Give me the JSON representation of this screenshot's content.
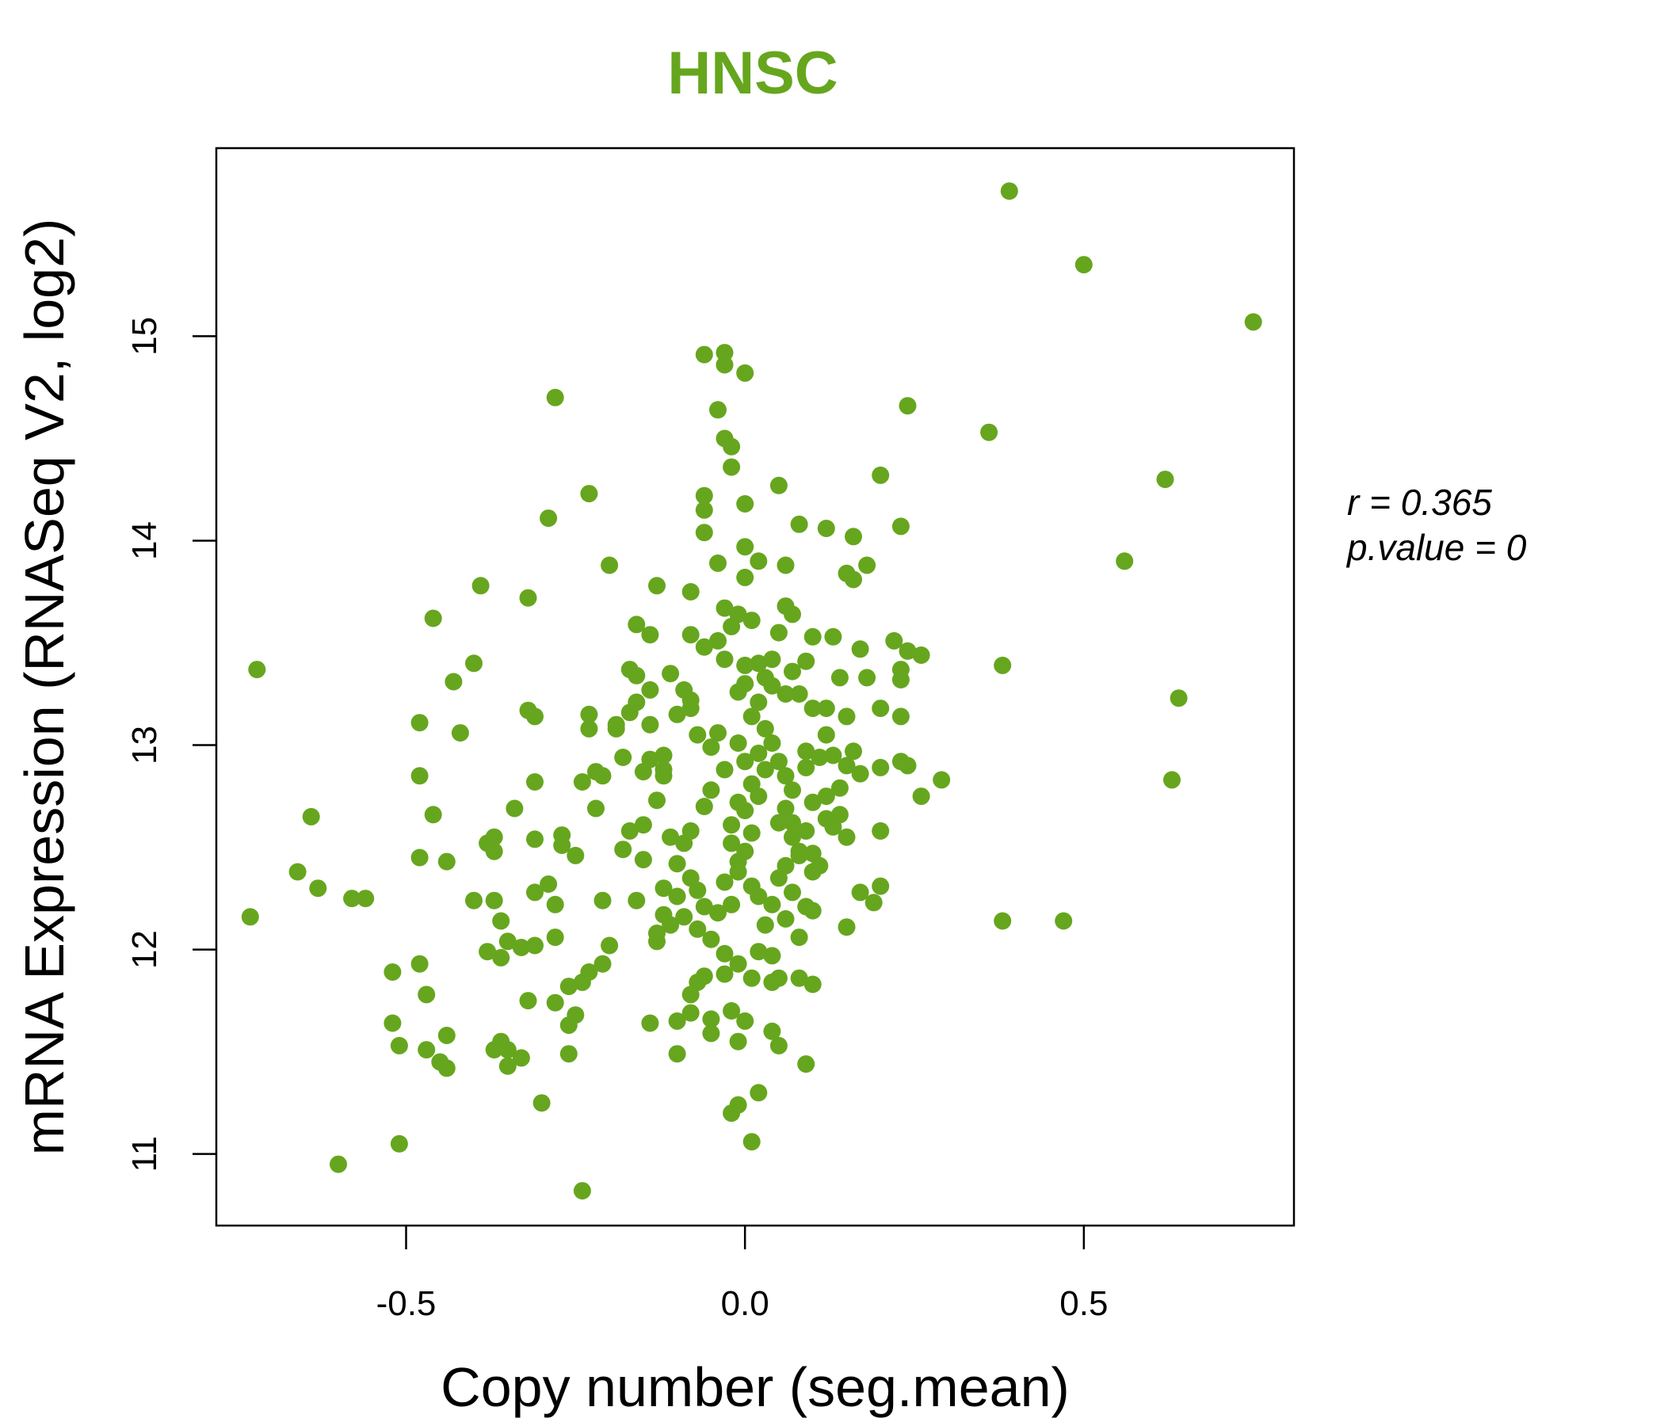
{
  "chart_data": {
    "type": "scatter",
    "title": "HNSC",
    "xlabel": "Copy number (seg.mean)",
    "ylabel": "mRNA Expression (RNASeq V2, log2)",
    "xlim": [
      -0.78,
      0.81
    ],
    "ylim": [
      10.65,
      15.92
    ],
    "xticks": [
      {
        "value": -0.5,
        "label": "-0.5"
      },
      {
        "value": 0.0,
        "label": "0.0"
      },
      {
        "value": 0.5,
        "label": "0.5"
      }
    ],
    "yticks": [
      {
        "value": 11,
        "label": "11"
      },
      {
        "value": 12,
        "label": "12"
      },
      {
        "value": 13,
        "label": "13"
      },
      {
        "value": 14,
        "label": "14"
      },
      {
        "value": 15,
        "label": "15"
      }
    ],
    "grid": false,
    "color": "#66a61e",
    "annotations": {
      "r_label": "r = 0.365",
      "p_label": "p.value = 0"
    },
    "points": [
      [
        0.39,
        15.71
      ],
      [
        0.5,
        15.35
      ],
      [
        0.75,
        15.07
      ],
      [
        -0.72,
        13.37
      ],
      [
        -0.73,
        12.16
      ],
      [
        0.62,
        14.3
      ],
      [
        0.36,
        14.53
      ],
      [
        0.56,
        13.9
      ],
      [
        0.64,
        13.23
      ],
      [
        0.63,
        12.83
      ],
      [
        0.38,
        13.39
      ],
      [
        0.38,
        12.14
      ],
      [
        0.47,
        12.14
      ],
      [
        0.24,
        14.66
      ],
      [
        0.2,
        14.32
      ],
      [
        0.23,
        14.07
      ],
      [
        0.29,
        12.83
      ],
      [
        -0.28,
        14.7
      ],
      [
        -0.23,
        14.23
      ],
      [
        -0.29,
        14.11
      ],
      [
        -0.2,
        13.88
      ],
      [
        -0.39,
        13.78
      ],
      [
        -0.32,
        13.72
      ],
      [
        -0.46,
        13.62
      ],
      [
        -0.4,
        13.4
      ],
      [
        -0.43,
        13.31
      ],
      [
        -0.48,
        13.11
      ],
      [
        -0.42,
        13.06
      ],
      [
        -0.64,
        12.65
      ],
      [
        -0.66,
        12.38
      ],
      [
        -0.63,
        12.3
      ],
      [
        -0.58,
        12.25
      ],
      [
        -0.56,
        12.25
      ],
      [
        -0.48,
        12.85
      ],
      [
        -0.46,
        12.66
      ],
      [
        -0.48,
        12.45
      ],
      [
        -0.44,
        12.43
      ],
      [
        -0.52,
        11.89
      ],
      [
        -0.48,
        11.93
      ],
      [
        -0.47,
        11.78
      ],
      [
        -0.52,
        11.64
      ],
      [
        -0.51,
        11.53
      ],
      [
        -0.47,
        11.51
      ],
      [
        -0.44,
        11.58
      ],
      [
        -0.44,
        11.42
      ],
      [
        -0.45,
        11.45
      ],
      [
        -0.51,
        11.05
      ],
      [
        -0.6,
        10.95
      ],
      [
        -0.24,
        10.82
      ],
      [
        -0.3,
        11.25
      ],
      [
        -0.06,
        14.91
      ],
      [
        -0.03,
        14.92
      ],
      [
        -0.03,
        14.86
      ],
      [
        0.0,
        14.82
      ],
      [
        -0.04,
        14.64
      ],
      [
        -0.03,
        14.5
      ],
      [
        -0.02,
        14.46
      ],
      [
        -0.02,
        14.36
      ],
      [
        0.05,
        14.27
      ],
      [
        -0.06,
        14.22
      ],
      [
        0.0,
        14.18
      ],
      [
        -0.06,
        14.15
      ],
      [
        0.08,
        14.08
      ],
      [
        -0.06,
        14.04
      ],
      [
        0.12,
        14.06
      ],
      [
        0.16,
        14.02
      ],
      [
        -0.04,
        13.89
      ],
      [
        0.0,
        13.97
      ],
      [
        0.02,
        13.9
      ],
      [
        0.06,
        13.88
      ],
      [
        0.18,
        13.88
      ],
      [
        0.15,
        13.84
      ],
      [
        0.16,
        13.81
      ],
      [
        -0.13,
        13.78
      ],
      [
        -0.08,
        13.75
      ],
      [
        0.0,
        13.82
      ],
      [
        -0.03,
        13.67
      ],
      [
        0.06,
        13.68
      ],
      [
        -0.16,
        13.59
      ],
      [
        -0.14,
        13.54
      ],
      [
        -0.08,
        13.54
      ],
      [
        -0.06,
        13.48
      ],
      [
        0.1,
        13.53
      ],
      [
        0.13,
        13.53
      ],
      [
        0.22,
        13.51
      ],
      [
        0.24,
        13.46
      ],
      [
        0.26,
        13.44
      ],
      [
        0.17,
        13.47
      ],
      [
        -0.17,
        13.37
      ],
      [
        -0.11,
        13.35
      ],
      [
        0.18,
        13.33
      ],
      [
        0.23,
        13.37
      ],
      [
        0.23,
        13.32
      ],
      [
        -0.32,
        13.17
      ],
      [
        -0.31,
        13.14
      ],
      [
        -0.23,
        13.15
      ],
      [
        -0.23,
        13.08
      ],
      [
        -0.19,
        13.08
      ],
      [
        -0.14,
        13.1
      ],
      [
        0.2,
        13.18
      ],
      [
        0.23,
        13.14
      ],
      [
        0.2,
        12.89
      ],
      [
        0.23,
        12.92
      ],
      [
        0.24,
        12.9
      ],
      [
        0.26,
        12.75
      ],
      [
        0.2,
        12.58
      ],
      [
        0.2,
        12.31
      ],
      [
        0.19,
        12.23
      ],
      [
        0.17,
        12.28
      ],
      [
        0.15,
        12.11
      ],
      [
        -0.31,
        12.82
      ],
      [
        -0.24,
        12.82
      ],
      [
        -0.22,
        12.87
      ],
      [
        -0.21,
        12.85
      ],
      [
        -0.34,
        12.69
      ],
      [
        -0.38,
        12.52
      ],
      [
        -0.37,
        12.55
      ],
      [
        -0.37,
        12.48
      ],
      [
        -0.31,
        12.54
      ],
      [
        -0.27,
        12.56
      ],
      [
        -0.27,
        12.51
      ],
      [
        -0.25,
        12.46
      ],
      [
        -0.22,
        12.69
      ],
      [
        -0.4,
        12.24
      ],
      [
        -0.37,
        12.24
      ],
      [
        -0.36,
        12.14
      ],
      [
        -0.31,
        12.28
      ],
      [
        -0.29,
        12.32
      ],
      [
        -0.28,
        12.22
      ],
      [
        -0.38,
        11.99
      ],
      [
        -0.36,
        11.96
      ],
      [
        -0.35,
        12.04
      ],
      [
        -0.33,
        12.01
      ],
      [
        -0.31,
        12.02
      ],
      [
        -0.28,
        12.06
      ],
      [
        -0.36,
        11.55
      ],
      [
        -0.37,
        11.51
      ],
      [
        -0.35,
        11.51
      ],
      [
        -0.35,
        11.43
      ],
      [
        -0.33,
        11.47
      ],
      [
        -0.32,
        11.75
      ],
      [
        -0.28,
        11.74
      ],
      [
        -0.26,
        11.82
      ],
      [
        -0.24,
        11.84
      ],
      [
        -0.23,
        11.89
      ],
      [
        -0.25,
        11.68
      ],
      [
        -0.26,
        11.63
      ],
      [
        -0.26,
        11.49
      ],
      [
        -0.21,
        11.93
      ],
      [
        -0.2,
        12.02
      ],
      [
        -0.21,
        12.24
      ],
      [
        -0.18,
        12.49
      ],
      [
        -0.16,
        12.24
      ],
      [
        -0.15,
        12.44
      ],
      [
        -0.13,
        12.04
      ],
      [
        -0.13,
        12.08
      ],
      [
        -0.14,
        11.64
      ],
      [
        -0.1,
        11.65
      ],
      [
        -0.08,
        11.69
      ],
      [
        -0.1,
        11.49
      ],
      [
        -0.05,
        11.59
      ],
      [
        -0.01,
        11.55
      ],
      [
        0.04,
        11.6
      ],
      [
        0.05,
        11.53
      ],
      [
        0.09,
        11.44
      ],
      [
        -0.02,
        11.2
      ],
      [
        -0.01,
        11.24
      ],
      [
        0.02,
        11.3
      ],
      [
        0.01,
        11.06
      ],
      [
        -0.05,
        11.66
      ],
      [
        -0.02,
        11.7
      ],
      [
        0.0,
        11.65
      ],
      [
        -0.03,
        11.88
      ],
      [
        -0.06,
        11.87
      ],
      [
        0.01,
        11.86
      ],
      [
        0.04,
        11.84
      ],
      [
        0.05,
        11.86
      ],
      [
        0.08,
        11.86
      ],
      [
        0.1,
        11.83
      ],
      [
        0.02,
        11.99
      ],
      [
        0.08,
        12.06
      ],
      [
        0.1,
        12.19
      ],
      [
        0.15,
        12.55
      ],
      [
        0.12,
        12.64
      ],
      [
        0.1,
        12.47
      ],
      [
        0.11,
        12.41
      ],
      [
        0.14,
        12.66
      ],
      [
        0.12,
        12.75
      ],
      [
        0.15,
        12.9
      ],
      [
        0.17,
        12.86
      ],
      [
        -0.03,
        13.42
      ],
      [
        0.0,
        13.39
      ],
      [
        0.02,
        13.4
      ],
      [
        0.04,
        13.42
      ],
      [
        0.06,
        13.25
      ],
      [
        0.08,
        13.25
      ],
      [
        0.1,
        13.18
      ],
      [
        0.12,
        13.05
      ],
      [
        0.13,
        12.95
      ],
      [
        0.11,
        12.94
      ],
      [
        -0.09,
        13.27
      ],
      [
        -0.08,
        13.18
      ],
      [
        -0.07,
        13.05
      ],
      [
        -0.05,
        12.99
      ],
      [
        -0.04,
        13.06
      ],
      [
        -0.03,
        12.88
      ],
      [
        -0.05,
        12.78
      ],
      [
        -0.06,
        12.7
      ],
      [
        -0.08,
        12.58
      ],
      [
        -0.09,
        12.52
      ],
      [
        -0.1,
        12.42
      ],
      [
        -0.08,
        12.35
      ],
      [
        -0.07,
        12.29
      ],
      [
        -0.06,
        12.21
      ],
      [
        -0.09,
        12.16
      ],
      [
        -0.07,
        12.1
      ],
      [
        -0.05,
        12.05
      ],
      [
        -0.04,
        12.18
      ],
      [
        -0.02,
        12.22
      ],
      [
        -0.03,
        12.33
      ],
      [
        -0.01,
        12.38
      ],
      [
        0.0,
        12.48
      ],
      [
        0.01,
        12.57
      ],
      [
        -0.02,
        12.61
      ],
      [
        0.0,
        12.68
      ],
      [
        0.02,
        12.75
      ],
      [
        0.01,
        12.81
      ],
      [
        0.03,
        12.88
      ],
      [
        0.02,
        12.96
      ],
      [
        0.04,
        13.01
      ],
      [
        0.03,
        13.08
      ],
      [
        0.01,
        13.14
      ],
      [
        0.02,
        13.21
      ],
      [
        0.0,
        13.3
      ],
      [
        0.03,
        13.33
      ],
      [
        0.05,
        12.92
      ],
      [
        0.06,
        12.85
      ],
      [
        0.07,
        12.78
      ],
      [
        0.06,
        12.69
      ],
      [
        0.05,
        12.62
      ],
      [
        0.07,
        12.55
      ],
      [
        0.08,
        12.48
      ],
      [
        0.06,
        12.41
      ],
      [
        0.05,
        12.35
      ],
      [
        0.07,
        12.28
      ],
      [
        0.04,
        12.22
      ],
      [
        0.06,
        12.15
      ],
      [
        0.03,
        12.12
      ],
      [
        0.02,
        12.26
      ],
      [
        0.01,
        12.31
      ],
      [
        -0.01,
        12.43
      ],
      [
        -0.02,
        12.52
      ],
      [
        -0.01,
        12.72
      ],
      [
        0.0,
        12.92
      ],
      [
        -0.01,
        13.01
      ],
      [
        -0.12,
        12.88
      ],
      [
        -0.12,
        12.95
      ],
      [
        -0.11,
        12.55
      ],
      [
        -0.12,
        12.3
      ],
      [
        -0.12,
        12.17
      ],
      [
        -0.11,
        12.12
      ],
      [
        -0.1,
        12.26
      ],
      [
        0.09,
        12.97
      ],
      [
        0.09,
        12.89
      ],
      [
        0.1,
        12.72
      ],
      [
        0.09,
        12.58
      ],
      [
        0.1,
        12.38
      ],
      [
        0.09,
        12.21
      ],
      [
        0.08,
        12.46
      ],
      [
        0.07,
        12.62
      ],
      [
        -0.04,
        13.51
      ],
      [
        -0.02,
        13.58
      ],
      [
        0.01,
        13.61
      ],
      [
        -0.01,
        13.64
      ],
      [
        0.07,
        13.64
      ],
      [
        0.05,
        13.55
      ],
      [
        0.09,
        13.41
      ],
      [
        -0.16,
        13.34
      ],
      [
        -0.14,
        13.27
      ],
      [
        -0.1,
        13.15
      ],
      [
        -0.08,
        13.22
      ],
      [
        -0.01,
        13.26
      ],
      [
        0.04,
        13.29
      ],
      [
        0.07,
        13.36
      ],
      [
        0.14,
        13.33
      ],
      [
        0.12,
        13.18
      ],
      [
        0.15,
        13.14
      ],
      [
        0.16,
        12.97
      ],
      [
        0.14,
        12.79
      ],
      [
        0.13,
        12.6
      ],
      [
        -0.03,
        11.98
      ],
      [
        -0.01,
        11.93
      ],
      [
        0.04,
        11.97
      ],
      [
        -0.08,
        11.78
      ],
      [
        -0.07,
        11.84
      ],
      [
        -0.17,
        12.58
      ],
      [
        -0.15,
        12.61
      ],
      [
        -0.13,
        12.73
      ],
      [
        -0.12,
        12.85
      ],
      [
        -0.18,
        12.94
      ],
      [
        -0.15,
        12.87
      ],
      [
        -0.14,
        12.93
      ],
      [
        -0.19,
        13.1
      ],
      [
        -0.17,
        13.16
      ],
      [
        -0.16,
        13.21
      ]
    ]
  }
}
